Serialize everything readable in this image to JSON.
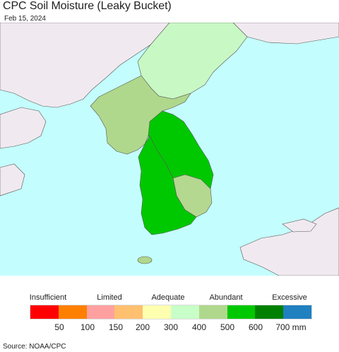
{
  "header": {
    "title": "CPC Soil Moisture (Leaky Bucket)",
    "date": "Feb 15, 2024"
  },
  "map": {
    "region": "Korean Peninsula",
    "ocean_color": "#c4fdfd",
    "land_outside_color": "#f0eaf0",
    "region_fills": {
      "north_plateau": "#c8f8c4",
      "northwest_lowland": "#b0d88c",
      "east_coast_band": "#00c800",
      "south_interior": "#b4d890",
      "southwest": "#00c800"
    }
  },
  "legend": {
    "categories": [
      {
        "label": "Insufficient"
      },
      {
        "label": "Limited"
      },
      {
        "label": "Adequate"
      },
      {
        "label": "Abundant"
      },
      {
        "label": "Excessive"
      }
    ],
    "colors": [
      "#ff0000",
      "#ff8000",
      "#ffa0a0",
      "#ffc070",
      "#ffffb0",
      "#c8ffc8",
      "#b0d88c",
      "#00c800",
      "#008000",
      "#2080c0"
    ],
    "ticks": [
      "50",
      "100",
      "150",
      "200",
      "300",
      "400",
      "500",
      "600",
      "700 mm"
    ]
  },
  "footer": {
    "source": "Source: NOAA/CPC"
  }
}
